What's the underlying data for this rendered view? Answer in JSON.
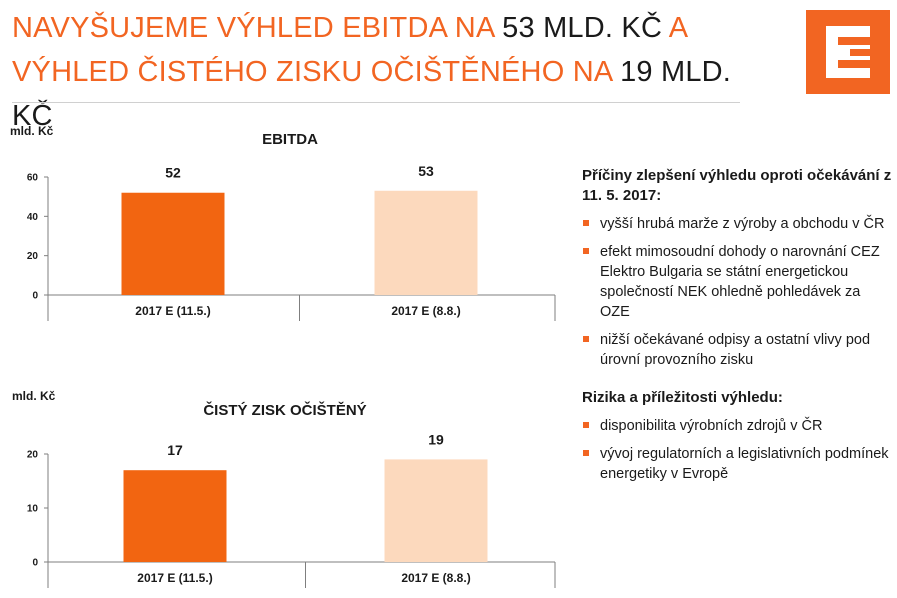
{
  "header": {
    "title_line1_orange": "NAVYŠUJEME VÝHLED EBITDA NA ",
    "title_line1_value": "53 MLD. KČ",
    "title_line1_suffix": " A",
    "title_line2_orange": "VÝHLED ČISTÉHO ZISKU OČIŠTĚNÉHO NA ",
    "title_line2_value": "19 MLD. KČ"
  },
  "colors": {
    "accent": "#f26522",
    "bar_primary": "#f26511",
    "bar_secondary": "#fcd9bd",
    "text": "#1a1a1a"
  },
  "logo": {
    "icon": "cez-logo-icon"
  },
  "chart_data": [
    {
      "type": "bar",
      "title": "EBITDA",
      "ylabel": "mld. Kč",
      "categories": [
        "2017 E (11.5.)",
        "2017 E (8.8.)"
      ],
      "values": [
        52,
        53
      ],
      "data_labels": [
        "52",
        "53"
      ],
      "yticks": [
        "0",
        "20",
        "40",
        "60"
      ],
      "ylim": [
        0,
        60
      ],
      "bar_colors": [
        "#f26511",
        "#fcd9bd"
      ],
      "grid": false
    },
    {
      "type": "bar",
      "title": "ČISTÝ ZISK OČIŠTĚNÝ",
      "ylabel": "mld. Kč",
      "categories": [
        "2017 E (11.5.)",
        "2017 E (8.8.)"
      ],
      "values": [
        17,
        19
      ],
      "data_labels": [
        "17",
        "19"
      ],
      "yticks": [
        "0",
        "10",
        "20"
      ],
      "ylim": [
        0,
        20
      ],
      "bar_colors": [
        "#f26511",
        "#fcd9bd"
      ],
      "grid": false
    }
  ],
  "side": {
    "reasons_heading": "Příčiny zlepšení výhledu oproti očekávání z 11. 5. 2017:",
    "reasons": [
      "vyšší hrubá marže z výroby a obchodu v ČR",
      "efekt mimosoudní dohody o narovnání CEZ Elektro Bulgaria se státní energetickou společností NEK ohledně pohledávek za OZE",
      "nižší očekávané odpisy a ostatní vlivy pod úrovní provozního zisku"
    ],
    "risks_heading": "Rizika a příležitosti výhledu:",
    "risks": [
      "disponibilita výrobních zdrojů v ČR",
      "vývoj regulatorních a legislativních podmínek energetiky v Evropě"
    ]
  }
}
